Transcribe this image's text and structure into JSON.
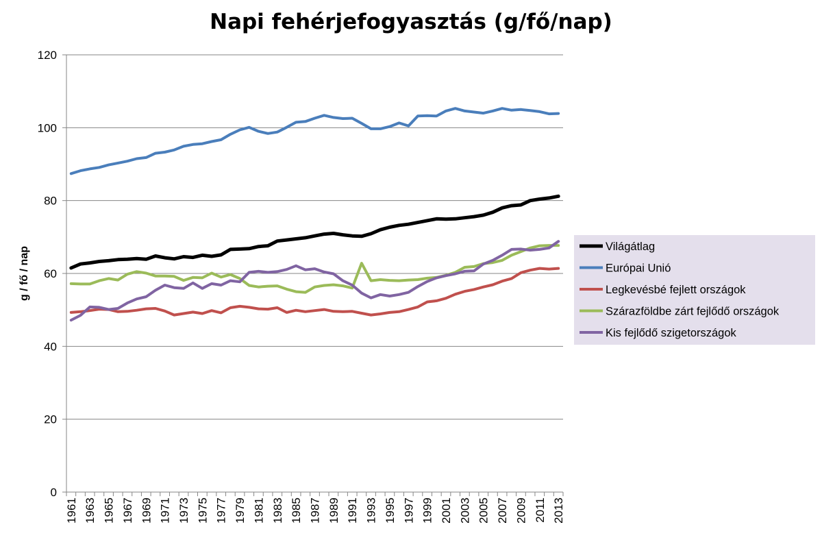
{
  "chart_data": {
    "type": "line",
    "title": "Napi fehérjefogyasztás (g/fő/nap)",
    "xlabel": "",
    "ylabel": "g / fő / nap",
    "ylim": [
      0,
      120
    ],
    "yticks": [
      "0",
      "20",
      "40",
      "60",
      "80",
      "100",
      "120"
    ],
    "grid": true,
    "legend_position": "right",
    "x": [
      1961,
      1962,
      1963,
      1964,
      1965,
      1966,
      1967,
      1968,
      1969,
      1970,
      1971,
      1972,
      1973,
      1974,
      1975,
      1976,
      1977,
      1978,
      1979,
      1980,
      1981,
      1982,
      1983,
      1984,
      1985,
      1986,
      1987,
      1988,
      1989,
      1990,
      1991,
      1992,
      1993,
      1994,
      1995,
      1996,
      1997,
      1998,
      1999,
      2000,
      2001,
      2002,
      2003,
      2004,
      2005,
      2006,
      2007,
      2008,
      2009,
      2010,
      2011,
      2012,
      2013
    ],
    "xtick_labels": [
      "1961",
      "1963",
      "1965",
      "1967",
      "1969",
      "1971",
      "1973",
      "1975",
      "1977",
      "1979",
      "1981",
      "1983",
      "1985",
      "1987",
      "1989",
      "1991",
      "1993",
      "1995",
      "1997",
      "1999",
      "2001",
      "2003",
      "2005",
      "2007",
      "2009",
      "2011",
      "2013"
    ],
    "series": [
      {
        "name": "Világátlag",
        "color": "#000000",
        "width": 5,
        "values": [
          61.5,
          62.6,
          62.9,
          63.3,
          63.5,
          63.8,
          63.9,
          64.1,
          63.9,
          64.8,
          64.3,
          64.0,
          64.6,
          64.4,
          65.0,
          64.7,
          65.1,
          66.6,
          66.7,
          66.8,
          67.4,
          67.6,
          68.9,
          69.2,
          69.5,
          69.8,
          70.3,
          70.8,
          71.0,
          70.6,
          70.3,
          70.2,
          70.9,
          72.0,
          72.7,
          73.2,
          73.5,
          74.0,
          74.5,
          75.0,
          74.9,
          75.0,
          75.3,
          75.6,
          76.0,
          76.8,
          78.0,
          78.6,
          78.8,
          80.0,
          80.4,
          80.7,
          81.2
        ]
      },
      {
        "name": "Európai Unió",
        "color": "#4a7ebb",
        "width": 4,
        "values": [
          87.4,
          88.2,
          88.7,
          89.1,
          89.8,
          90.3,
          90.8,
          91.5,
          91.8,
          93.0,
          93.3,
          93.9,
          94.9,
          95.4,
          95.6,
          96.2,
          96.7,
          98.2,
          99.4,
          100.1,
          99.0,
          98.4,
          98.8,
          100.1,
          101.5,
          101.7,
          102.6,
          103.4,
          102.8,
          102.5,
          102.6,
          101.2,
          99.7,
          99.7,
          100.3,
          101.3,
          100.5,
          103.2,
          103.3,
          103.2,
          104.6,
          105.3,
          104.6,
          104.3,
          104.0,
          104.6,
          105.3,
          104.8,
          105.0,
          104.7,
          104.4,
          103.8,
          103.9
        ]
      },
      {
        "name": "Legkevésbé fejlett országok",
        "color": "#c0504d",
        "width": 4,
        "values": [
          49.3,
          49.5,
          49.8,
          50.2,
          50.1,
          49.5,
          49.6,
          49.9,
          50.3,
          50.4,
          49.7,
          48.6,
          49.0,
          49.4,
          49.0,
          49.8,
          49.2,
          50.6,
          51.0,
          50.7,
          50.3,
          50.2,
          50.6,
          49.3,
          49.9,
          49.5,
          49.8,
          50.1,
          49.6,
          49.5,
          49.6,
          49.1,
          48.6,
          48.9,
          49.3,
          49.5,
          50.1,
          50.8,
          52.2,
          52.5,
          53.2,
          54.3,
          55.1,
          55.6,
          56.3,
          56.9,
          57.9,
          58.6,
          60.2,
          60.9,
          61.4,
          61.2,
          61.4
        ]
      },
      {
        "name": "Szárazföldbe zárt fejlődő országok",
        "color": "#9bbb59",
        "width": 4,
        "values": [
          57.2,
          57.1,
          57.1,
          58.0,
          58.6,
          58.2,
          59.8,
          60.5,
          60.1,
          59.3,
          59.3,
          59.2,
          58.1,
          58.9,
          58.8,
          60.1,
          59.0,
          59.7,
          58.6,
          56.7,
          56.3,
          56.5,
          56.6,
          55.7,
          55.0,
          54.8,
          56.3,
          56.7,
          56.9,
          56.6,
          56.0,
          62.8,
          58.0,
          58.3,
          58.1,
          58.0,
          58.2,
          58.3,
          58.7,
          58.9,
          59.5,
          60.3,
          61.7,
          61.9,
          62.7,
          63.0,
          63.6,
          65.0,
          66.0,
          67.0,
          67.6,
          67.7,
          67.7
        ]
      },
      {
        "name": "Kis fejlődő szigetországok",
        "color": "#8064a2",
        "width": 4,
        "values": [
          47.2,
          48.5,
          50.8,
          50.7,
          50.1,
          50.4,
          51.9,
          53.0,
          53.6,
          55.4,
          56.8,
          56.1,
          55.9,
          57.4,
          55.9,
          57.2,
          56.8,
          58.0,
          57.7,
          60.3,
          60.6,
          60.3,
          60.5,
          61.1,
          62.1,
          61.0,
          61.3,
          60.4,
          59.9,
          58.0,
          56.8,
          54.6,
          53.3,
          54.2,
          53.8,
          54.2,
          54.8,
          56.4,
          57.8,
          58.8,
          59.4,
          59.9,
          60.6,
          60.7,
          62.6,
          63.6,
          65.0,
          66.6,
          66.7,
          66.4,
          66.6,
          67.0,
          68.8
        ]
      }
    ]
  }
}
